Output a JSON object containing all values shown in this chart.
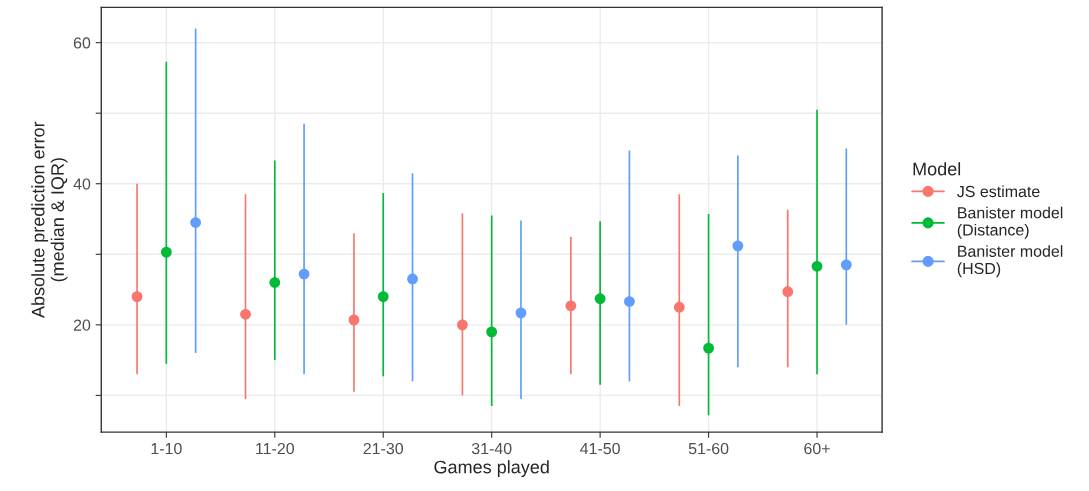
{
  "chart_data": {
    "type": "scatter",
    "xlabel": "Games played",
    "ylabel": "Absolute prediction error\n(median & IQR)",
    "legend_title": "Model",
    "legend": "right",
    "grid": true,
    "marker": "circle",
    "categories": [
      "1-10",
      "11-20",
      "21-30",
      "31-40",
      "41-50",
      "51-60",
      "60+"
    ],
    "ylim": [
      4.8,
      65
    ],
    "yticks": [
      {
        "value": 10,
        "label": null
      },
      20,
      {
        "value": 30,
        "label": null
      },
      40,
      {
        "value": 50,
        "label": null
      },
      60
    ],
    "series": [
      {
        "name": "JS estimate",
        "color": "#f8766d",
        "values": [
          24,
          21.5,
          20.7,
          20,
          22.7,
          22.5,
          24.7
        ],
        "errors": [
          [
            13,
            40
          ],
          [
            9.5,
            38.5
          ],
          [
            10.5,
            33
          ],
          [
            10,
            35.8
          ],
          [
            13,
            32.5
          ],
          [
            8.5,
            38.5
          ],
          [
            14,
            36.3
          ]
        ]
      },
      {
        "name": "Banister model\n(Distance)",
        "color": "#00ba38",
        "values": [
          30.3,
          26,
          24,
          19,
          23.7,
          16.7,
          28.3
        ],
        "errors": [
          [
            14.5,
            57.3
          ],
          [
            15,
            43.3
          ],
          [
            12.7,
            38.7
          ],
          [
            8.5,
            35.5
          ],
          [
            11.5,
            34.7
          ],
          [
            7.2,
            35.7
          ],
          [
            13,
            50.5
          ]
        ]
      },
      {
        "name": "Banister model\n(HSD)",
        "color": "#619cff",
        "values": [
          34.5,
          27.2,
          26.5,
          21.7,
          23.3,
          31.2,
          28.5
        ],
        "errors": [
          [
            16,
            62
          ],
          [
            13,
            48.5
          ],
          [
            12,
            41.5
          ],
          [
            9.5,
            34.8
          ],
          [
            12,
            44.7
          ],
          [
            14,
            44
          ],
          [
            20,
            45
          ]
        ]
      }
    ]
  }
}
